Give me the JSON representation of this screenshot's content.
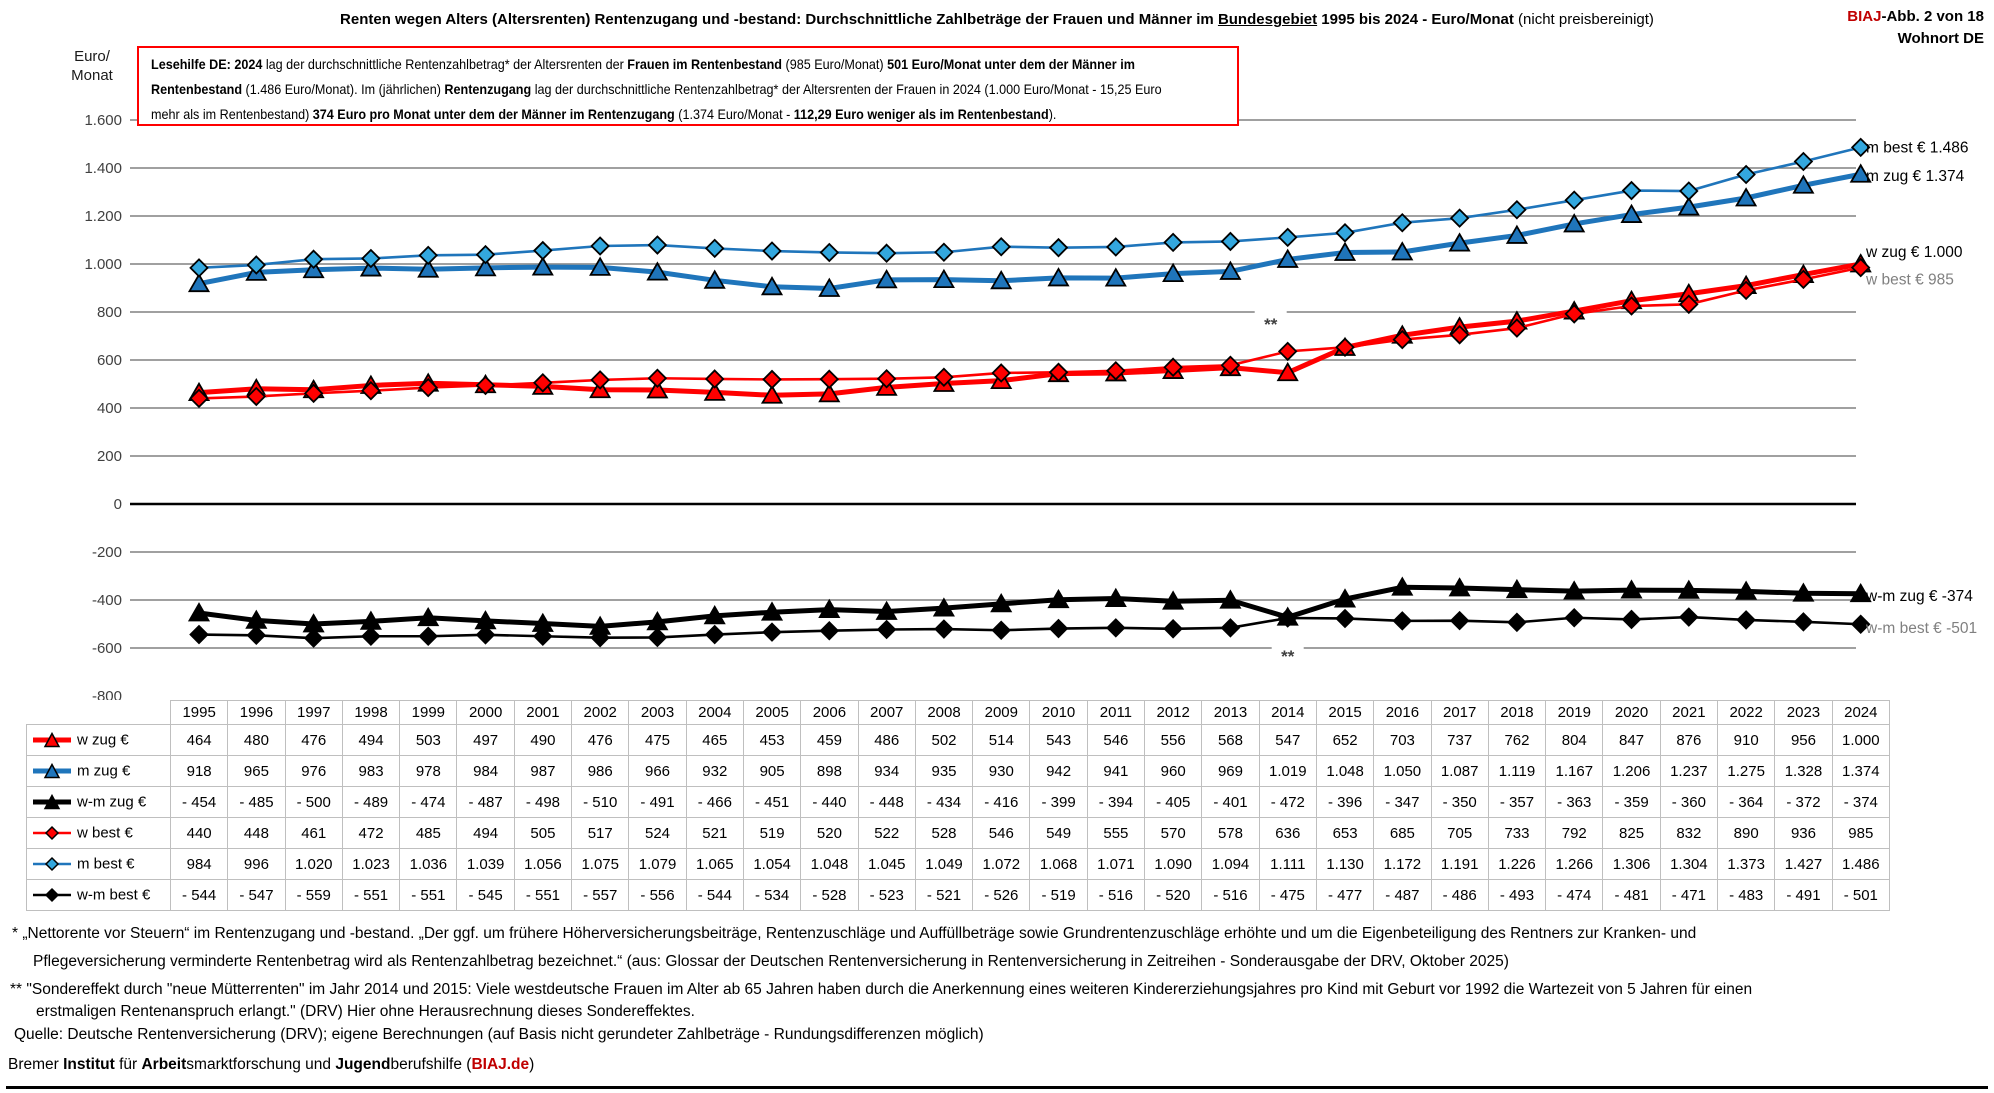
{
  "header": {
    "title_segments": [
      {
        "t": "Renten wegen Alters (Altersrenten) Rentenzugang und -bestand: Durchschnittliche Zahlbeträge der Frauen und Männer im ",
        "b": true
      },
      {
        "t": "Bundesgebiet",
        "b": true,
        "u": true
      },
      {
        "t": " 1995 bis 2024 - Euro/Monat ",
        "b": true
      },
      {
        "t": "(nicht preisbereinigt)",
        "b": false
      }
    ],
    "figure_ref_segments": [
      {
        "t": "BIAJ",
        "b": true,
        "c": "#C00000"
      },
      {
        "t": "-Abb. 2 von 18",
        "b": true
      }
    ],
    "location": "Wohnort DE"
  },
  "lesehilfe": {
    "lines": [
      [
        {
          "t": "Lesehilfe DE: 2024",
          "b": true
        },
        {
          "t": " lag der durchschnittliche Rentenzahlbetrag* der Altersrenten der ",
          "b": false
        },
        {
          "t": "Frauen im Rentenbestand",
          "b": true
        },
        {
          "t": " (985 Euro/Monat) ",
          "b": false
        },
        {
          "t": "501 Euro/Monat unter dem der Männer im",
          "b": true
        }
      ],
      [
        {
          "t": "Rentenbestand",
          "b": true
        },
        {
          "t": " (1.486 Euro/Monat).  Im (jährlichen) ",
          "b": false
        },
        {
          "t": "Rentenzugang",
          "b": true
        },
        {
          "t": " lag der durchschnittliche Rentenzahlbetrag* der Altersrenten der Frauen in 2024 (1.000 Euro/Monat - 15,25 Euro",
          "b": false
        }
      ],
      [
        {
          "t": "mehr als im Rentenbestand) ",
          "b": false
        },
        {
          "t": "374 Euro pro Monat unter dem der Männer im Rentenzugang",
          "b": true
        },
        {
          "t": " (1.374 Euro/Monat - ",
          "b": false
        },
        {
          "t": "112,29 Euro weniger als im Rentenbestand",
          "b": true
        },
        {
          "t": ").",
          "b": false
        }
      ]
    ]
  },
  "chart_data": {
    "type": "line",
    "title": "Renten wegen Alters (Altersrenten) Rentenzugang und -bestand: Durchschnittliche Zahlbeträge der Frauen und Männer im Bundesgebiet 1995 bis 2024 - Euro/Monat (nicht preisbereinigt)",
    "y_axis_title": [
      "Euro/",
      "Monat"
    ],
    "ylim": [
      -800,
      1600
    ],
    "ytick_step": 200,
    "ytick_labels": [
      "1.600",
      "1.400",
      "1.200",
      "1.000",
      "800",
      "600",
      "400",
      "200",
      "0",
      "-200",
      "-400",
      "-600",
      "-800"
    ],
    "grid": true,
    "legend_position": "table-left-column",
    "x": [
      1995,
      1996,
      1997,
      1998,
      1999,
      2000,
      2001,
      2002,
      2003,
      2004,
      2005,
      2006,
      2007,
      2008,
      2009,
      2010,
      2011,
      2012,
      2013,
      2014,
      2015,
      2016,
      2017,
      2018,
      2019,
      2020,
      2021,
      2022,
      2023,
      2024
    ],
    "series": [
      {
        "id": "w-zug",
        "name": "w zug €",
        "color": "#FF0000",
        "marker": "triangle",
        "marker_fill": "#FF0000",
        "line_width": 5,
        "values": [
          464,
          480,
          476,
          494,
          503,
          497,
          490,
          476,
          475,
          465,
          453,
          459,
          486,
          502,
          514,
          543,
          546,
          556,
          568,
          547,
          652,
          703,
          737,
          762,
          804,
          847,
          876,
          910,
          956,
          1000
        ]
      },
      {
        "id": "m-zug",
        "name": "m zug €",
        "color": "#1F75BB",
        "marker": "triangle",
        "marker_fill": "#1F75BB",
        "line_width": 5,
        "values": [
          918,
          965,
          976,
          983,
          978,
          984,
          987,
          986,
          966,
          932,
          905,
          898,
          934,
          935,
          930,
          942,
          941,
          960,
          969,
          1019,
          1048,
          1050,
          1087,
          1119,
          1167,
          1206,
          1237,
          1275,
          1328,
          1374
        ]
      },
      {
        "id": "w-m-zug",
        "name": "w-m zug €",
        "color": "#000000",
        "marker": "triangle",
        "marker_fill": "#000000",
        "line_width": 5,
        "values": [
          -454,
          -485,
          -500,
          -489,
          -474,
          -487,
          -498,
          -510,
          -491,
          -466,
          -451,
          -440,
          -448,
          -434,
          -416,
          -399,
          -394,
          -405,
          -401,
          -472,
          -396,
          -347,
          -350,
          -357,
          -363,
          -359,
          -360,
          -364,
          -372,
          -374
        ]
      },
      {
        "id": "w-best",
        "name": "w best €",
        "color": "#FF0000",
        "marker": "diamond",
        "marker_fill": "#FF0000",
        "line_width": 2.6,
        "values": [
          440,
          448,
          461,
          472,
          485,
          494,
          505,
          517,
          524,
          521,
          519,
          520,
          522,
          528,
          546,
          549,
          555,
          570,
          578,
          636,
          653,
          685,
          705,
          733,
          792,
          825,
          832,
          890,
          936,
          985
        ]
      },
      {
        "id": "m-best",
        "name": "m best €",
        "color": "#1F75BB",
        "marker": "diamond",
        "marker_fill": "#33A7DE",
        "line_width": 2.6,
        "values": [
          984,
          996,
          1020,
          1023,
          1036,
          1039,
          1056,
          1075,
          1079,
          1065,
          1054,
          1048,
          1045,
          1049,
          1072,
          1068,
          1071,
          1090,
          1094,
          1111,
          1130,
          1172,
          1191,
          1226,
          1266,
          1306,
          1304,
          1373,
          1427,
          1486
        ]
      },
      {
        "id": "w-m-best",
        "name": "w-m best €",
        "color": "#000000",
        "marker": "diamond",
        "marker_fill": "#000000",
        "line_width": 2.6,
        "values": [
          -544,
          -547,
          -559,
          -551,
          -551,
          -545,
          -551,
          -557,
          -556,
          -544,
          -534,
          -528,
          -523,
          -521,
          -526,
          -519,
          -516,
          -520,
          -516,
          -475,
          -477,
          -487,
          -486,
          -493,
          -474,
          -481,
          -471,
          -483,
          -491,
          -501
        ]
      }
    ],
    "right_labels": [
      {
        "text": "m best € 1.486",
        "color": "#000000",
        "value": 1486,
        "dy": 0
      },
      {
        "text": "m zug € 1.374",
        "color": "#000000",
        "value": 1374,
        "dy": 2
      },
      {
        "text": "w zug € 1.000",
        "color": "#000000",
        "value": 1000,
        "dy": -12
      },
      {
        "text": "w best € 985",
        "color": "#808080",
        "value": 985,
        "dy": 12
      },
      {
        "text": "w-m zug € -374",
        "color": "#000000",
        "value": -374,
        "dy": 2
      },
      {
        "text": "w-m best € -501",
        "color": "#808080",
        "value": -501,
        "dy": 4
      }
    ],
    "annotations": [
      {
        "text": "**",
        "year": 2014,
        "at_value": 800
      },
      {
        "text": "**",
        "year": 2014,
        "at_value": -600
      }
    ]
  },
  "footnotes": {
    "star1_line1": "* „Nettorente vor Steuern“ im Rentenzugang und -bestand. „Der ggf. um frühere Höherversicherungsbeiträge, Rentenzuschläge und Auffüllbeträge sowie Grundrentenzuschläge erhöhte und um die Eigenbeteiligung des Rentners zur Kranken- und",
    "star1_line2": "Pflegeversicherung verminderte Rentenbetrag wird als Rentenzahlbetrag bezeichnet.“ (aus: Glossar der Deutschen Rentenversicherung in Rentenversicherung in Zeitreihen - Sonderausgabe der DRV, Oktober 2025)",
    "star2_line1": "** \"Sondereffekt durch \"neue Mütterrenten\" im Jahr 2014 und 2015: Viele westdeutsche Frauen im Alter ab 65 Jahren haben durch die Anerkennung eines weiteren Kindererziehungsjahres pro Kind mit Geburt vor 1992 die Wartezeit von 5 Jahren für einen",
    "star2_line2": "erstmaligen Rentenanspruch erlangt.\" (DRV) Hier ohne Herausrechnung dieses Sondereffektes.",
    "source": "Quelle: Deutsche Rentenversicherung (DRV);  eigene Berechnungen (auf Basis nicht gerundeter Zahlbeträge - Rundungsdifferenzen möglich)",
    "credit_segments": [
      {
        "t": "Bremer ",
        "b": false
      },
      {
        "t": "Institut",
        "b": true
      },
      {
        "t": " für ",
        "b": false
      },
      {
        "t": "Arbeit",
        "b": true
      },
      {
        "t": "smarktforschung und ",
        "b": false
      },
      {
        "t": "Jugend",
        "b": true
      },
      {
        "t": "berufshilfe (",
        "b": false
      },
      {
        "t": "BIAJ.de",
        "b": true,
        "c": "#C00000"
      },
      {
        "t": ")",
        "b": false
      }
    ]
  },
  "colors": {
    "red": "#FF0000",
    "blue": "#1F75BB",
    "blue_light": "#33A7DE",
    "black": "#000000",
    "grid": "#808080",
    "table_border": "#BFBFBF",
    "gray_label": "#808080",
    "accent_red": "#C00000"
  }
}
